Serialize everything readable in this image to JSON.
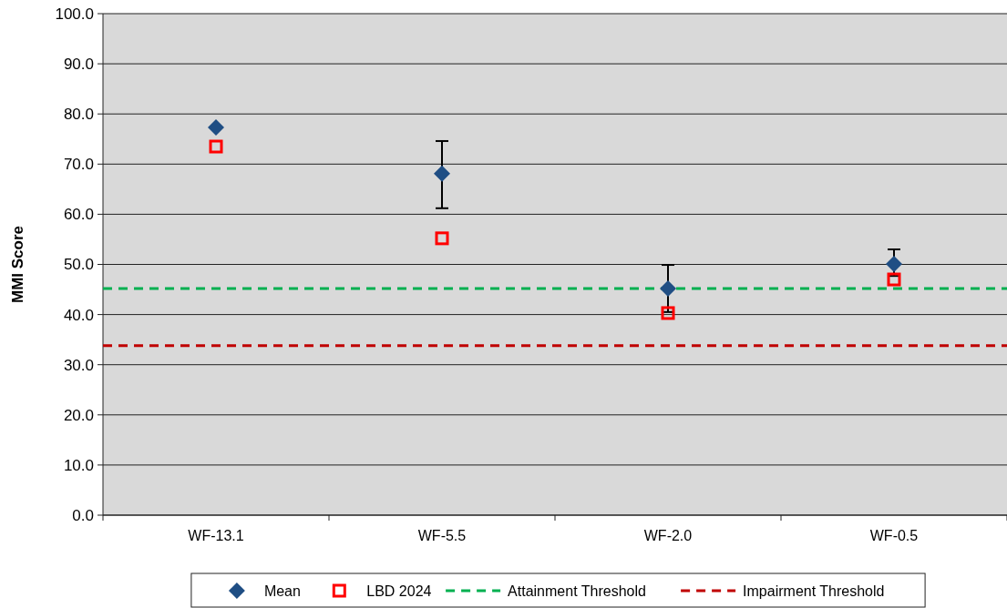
{
  "chart_data": {
    "type": "scatter",
    "ylabel": "MMI Score",
    "categories": [
      "WF-13.1",
      "WF-5.5",
      "WF-2.0",
      "WF-0.5"
    ],
    "ylim": [
      0,
      100
    ],
    "yticks": [
      {
        "value": 0,
        "label": "0.0"
      },
      {
        "value": 10,
        "label": "10.0"
      },
      {
        "value": 20,
        "label": "20.0"
      },
      {
        "value": 30,
        "label": "30.0"
      },
      {
        "value": 40,
        "label": "40.0"
      },
      {
        "value": 50,
        "label": "50.0"
      },
      {
        "value": 60,
        "label": "60.0"
      },
      {
        "value": 70,
        "label": "70.0"
      },
      {
        "value": 80,
        "label": "80.0"
      },
      {
        "value": 90,
        "label": "90.0"
      },
      {
        "value": 100,
        "label": "100.0"
      }
    ],
    "grid": "y",
    "legend": "bottom",
    "series": [
      {
        "name": "Mean",
        "color": "#1f4e84",
        "marker": "diamond",
        "values": [
          77.3,
          68.1,
          45.2,
          50.1
        ],
        "errors": [
          null,
          [
            61.2,
            74.6
          ],
          [
            40.5,
            49.9
          ],
          [
            47.7,
            53.0
          ]
        ]
      },
      {
        "name": "LBD 2024",
        "color": "#ff0000",
        "marker": "square",
        "values": [
          73.5,
          55.2,
          40.3,
          47.0
        ]
      }
    ],
    "ref_lines": [
      {
        "axis": "y",
        "value": 45.2,
        "label": "Attainment Threshold",
        "color": "#00b050",
        "line_style": "dashed"
      },
      {
        "axis": "y",
        "value": 33.8,
        "label": "Impairment Threshold",
        "color": "#c00000",
        "line_style": "dashed"
      }
    ]
  }
}
